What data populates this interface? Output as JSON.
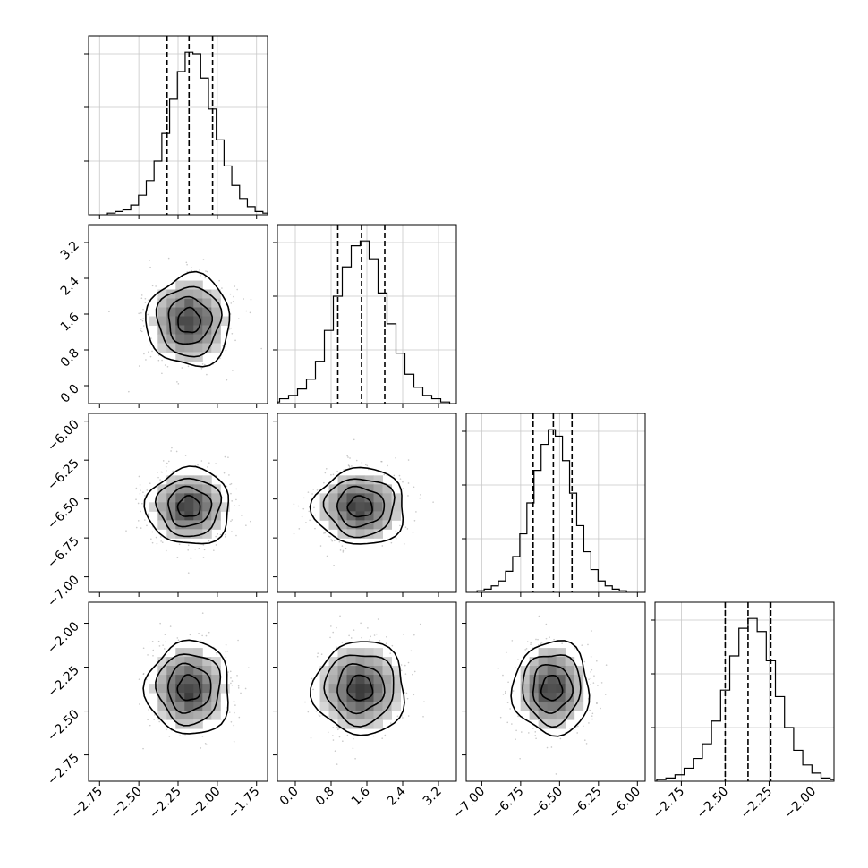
{
  "chart_data": {
    "type": "corner",
    "num_params": 4,
    "colors": {
      "frame": "#000000",
      "grid": "#c8c8c8",
      "points": "#9a9a9a",
      "contour": "#000000",
      "hist": "#000000"
    },
    "grid": true,
    "parameters": [
      {
        "range": [
          -2.82,
          -1.68
        ],
        "tick_values": [
          -2.75,
          -2.5,
          -2.25,
          -2.0,
          -1.75
        ],
        "tick_labels": [
          "−2.75",
          "−2.50",
          "−2.25",
          "−2.00",
          "−1.75"
        ],
        "quantiles": [
          -2.32,
          -2.18,
          -2.03
        ],
        "mean": -2.18,
        "sd": 0.13,
        "hist_counts": [
          1,
          2,
          3,
          6,
          12,
          21,
          33,
          50,
          71,
          88,
          100,
          99,
          84,
          65,
          46,
          30,
          18,
          10,
          5,
          2,
          1
        ]
      },
      {
        "range": [
          -0.4,
          3.6
        ],
        "tick_values": [
          0.0,
          0.8,
          1.6,
          2.4,
          3.2
        ],
        "tick_labels": [
          "0.0",
          "0.8",
          "1.6",
          "2.4",
          "3.2"
        ],
        "quantiles": [
          0.95,
          1.48,
          2.0
        ],
        "mean": 1.45,
        "sd": 0.5,
        "hist_counts": [
          1,
          3,
          5,
          9,
          15,
          26,
          45,
          66,
          84,
          97,
          100,
          89,
          68,
          49,
          31,
          18,
          10,
          5,
          3,
          1
        ]
      },
      {
        "range": [
          -7.1,
          -5.95
        ],
        "tick_values": [
          -7.0,
          -6.75,
          -6.5,
          -6.25,
          -6.0
        ],
        "tick_labels": [
          "−7.00",
          "−6.75",
          "−6.50",
          "−6.25",
          "−6.00"
        ],
        "quantiles": [
          -6.67,
          -6.54,
          -6.42
        ],
        "mean": -6.55,
        "sd": 0.12,
        "hist_counts": [
          1,
          2,
          4,
          7,
          13,
          22,
          36,
          55,
          75,
          91,
          100,
          96,
          81,
          61,
          41,
          25,
          14,
          7,
          4,
          2,
          1
        ]
      },
      {
        "range": [
          -2.9,
          -1.88
        ],
        "tick_values": [
          -2.75,
          -2.5,
          -2.25,
          -2.0
        ],
        "tick_labels": [
          "−2.75",
          "−2.50",
          "−2.25",
          "−2.00"
        ],
        "quantiles": [
          -2.5,
          -2.37,
          -2.24
        ],
        "mean": -2.37,
        "sd": 0.13,
        "hist_counts": [
          1,
          2,
          4,
          8,
          14,
          23,
          37,
          56,
          77,
          94,
          100,
          92,
          74,
          52,
          33,
          19,
          10,
          5,
          2,
          1
        ]
      }
    ]
  }
}
